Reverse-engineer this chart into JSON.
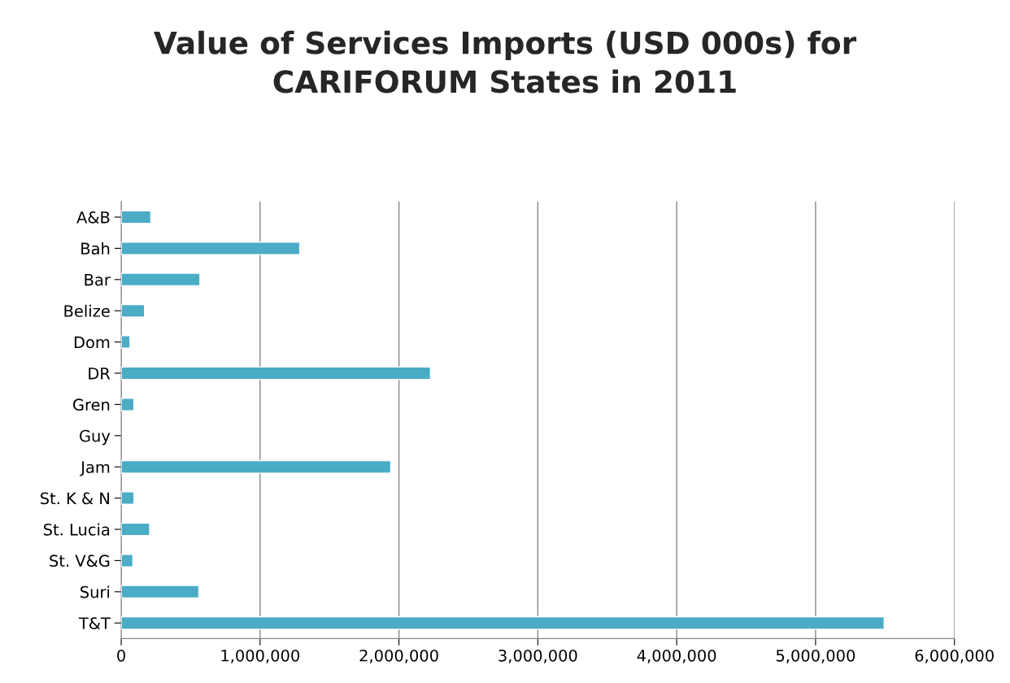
{
  "chart_data": {
    "type": "bar",
    "orientation": "horizontal",
    "title": "Value of Services Imports (USD 000s) for\nCARIFORUM States in 2011",
    "categories": [
      "A&B",
      "Bah",
      "Bar",
      "Belize",
      "Dom",
      "DR",
      "Gren",
      "Guy",
      "Jam",
      "St. K & N",
      "St. Lucia",
      "St. V&G",
      "Suri",
      "T&T"
    ],
    "values": [
      213000,
      1286000,
      567000,
      168000,
      63000,
      2227000,
      92000,
      null,
      1941000,
      92000,
      205000,
      84000,
      559000,
      5494000
    ],
    "color": "#4bacc6",
    "xlim": [
      0,
      6000000
    ],
    "xticks": [
      {
        "value": 0,
        "label": "0"
      },
      {
        "value": 1000000,
        "label": "1,000,000"
      },
      {
        "value": 2000000,
        "label": "2,000,000"
      },
      {
        "value": 3000000,
        "label": "3,000,000"
      },
      {
        "value": 4000000,
        "label": "4,000,000"
      },
      {
        "value": 5000000,
        "label": "5,000,000"
      },
      {
        "value": 6000000,
        "label": "6,000,000"
      }
    ],
    "grid": "x"
  }
}
